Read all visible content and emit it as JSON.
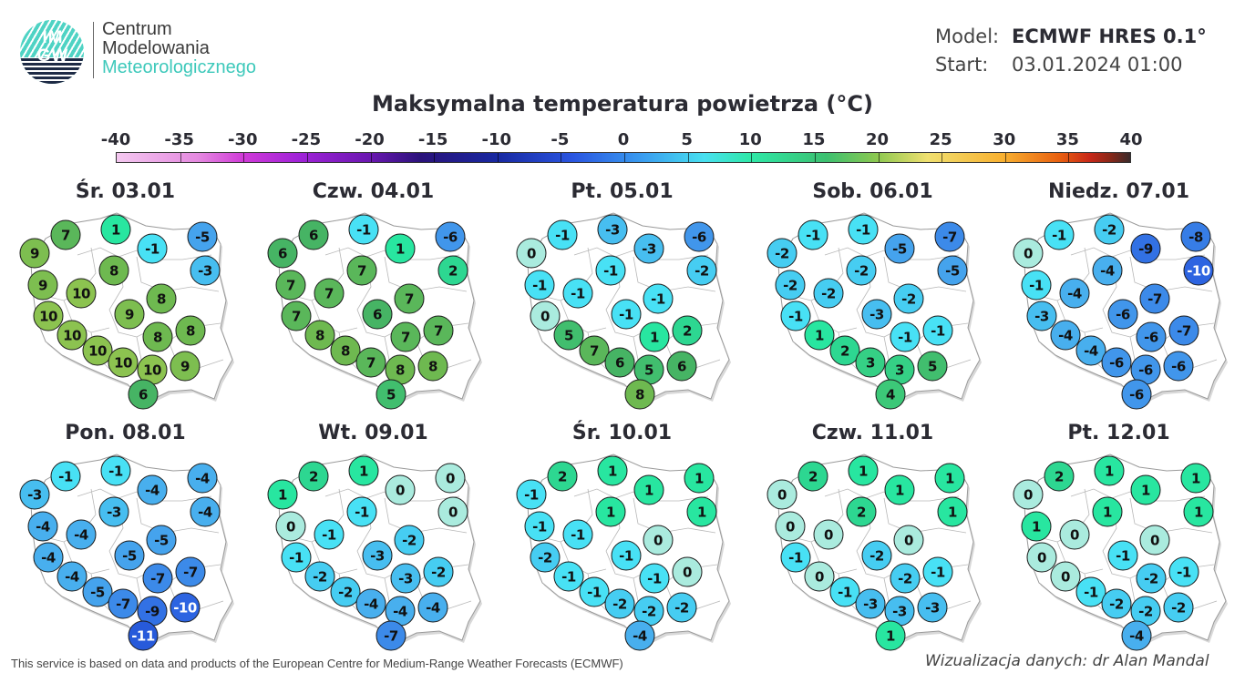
{
  "header": {
    "logo": {
      "icon": "imgw-logo-icon",
      "letters_top": "IM",
      "letters_bottom": "GW",
      "line1": "Centrum",
      "line2": "Modelowania",
      "line3": "Meteorologicznego"
    },
    "model_label": "Model:",
    "model_value": "ECMWF HRES 0.1°",
    "start_label": "Start:",
    "start_value": "03.01.2024 01:00"
  },
  "title": "Maksymalna temperatura powietrza (°C)",
  "colors": {
    "text": "#2b2b33",
    "logo_teal": "#3ec9bb",
    "logo_navy": "#1e2a45"
  },
  "footer": {
    "attribution": "This service is based on data and products of the European Centre for Medium-Range Weather Forecasts (ECMWF)",
    "credit": "Wizualizacja danych: dr Alan Mandal"
  },
  "chart_data": {
    "type": "heatmap",
    "title": "Maksymalna temperatura powietrza (°C)",
    "colorbar": {
      "ticks": [
        -40,
        -35,
        -30,
        -25,
        -20,
        -15,
        -10,
        -5,
        0,
        5,
        10,
        15,
        20,
        25,
        30,
        35,
        40
      ],
      "range": [
        -40,
        40
      ],
      "unit": "°C"
    },
    "station_positions": [
      [
        117,
        62
      ],
      [
        62,
        68
      ],
      [
        28,
        88
      ],
      [
        157,
        83
      ],
      [
        212,
        70
      ],
      [
        115,
        107
      ],
      [
        215,
        107
      ],
      [
        37,
        123
      ],
      [
        79,
        132
      ],
      [
        167,
        138
      ],
      [
        43,
        157
      ],
      [
        132,
        155
      ],
      [
        163,
        180
      ],
      [
        199,
        173
      ],
      [
        69,
        178
      ],
      [
        97,
        195
      ],
      [
        125,
        208
      ],
      [
        157,
        216
      ],
      [
        193,
        212
      ],
      [
        147,
        243
      ]
    ],
    "panels": [
      {
        "label": "Śr. 03.01",
        "values": [
          1,
          7,
          9,
          -1,
          -5,
          8,
          -3,
          9,
          10,
          8,
          10,
          9,
          8,
          8,
          10,
          10,
          10,
          10,
          9,
          6
        ]
      },
      {
        "label": "Czw. 04.01",
        "values": [
          -1,
          6,
          6,
          1,
          -6,
          7,
          2,
          7,
          7,
          7,
          7,
          6,
          7,
          7,
          8,
          8,
          7,
          8,
          8,
          5
        ]
      },
      {
        "label": "Pt. 05.01",
        "values": [
          -3,
          -1,
          0,
          -3,
          -6,
          -1,
          -2,
          -1,
          -1,
          -1,
          0,
          -1,
          1,
          2,
          5,
          7,
          6,
          5,
          6,
          8
        ]
      },
      {
        "label": "Sob. 06.01",
        "values": [
          -1,
          -1,
          -2,
          -5,
          -7,
          -2,
          -5,
          -2,
          -2,
          -2,
          -1,
          -3,
          -1,
          -1,
          1,
          2,
          3,
          3,
          5,
          4
        ]
      },
      {
        "label": "Niedz. 07.01",
        "values": [
          -2,
          -1,
          0,
          -9,
          -8,
          -4,
          -10,
          -1,
          -4,
          -7,
          -3,
          -6,
          -6,
          -7,
          -4,
          -4,
          -6,
          -6,
          -6,
          -6
        ]
      },
      {
        "label": "Pon. 08.01",
        "values": [
          -1,
          -1,
          -3,
          -4,
          -4,
          -3,
          -4,
          -4,
          -4,
          -5,
          -4,
          -5,
          -7,
          -7,
          -4,
          -5,
          -7,
          -9,
          -10,
          -11
        ]
      },
      {
        "label": "Wt. 09.01",
        "values": [
          1,
          2,
          1,
          0,
          0,
          -1,
          0,
          0,
          -1,
          -2,
          -1,
          -3,
          -3,
          -2,
          -2,
          -2,
          -4,
          -4,
          -4,
          -7
        ]
      },
      {
        "label": "Śr. 10.01",
        "values": [
          1,
          2,
          -1,
          1,
          1,
          1,
          1,
          -1,
          -1,
          0,
          -2,
          -1,
          -1,
          0,
          -1,
          -1,
          -2,
          -2,
          -2,
          -4
        ]
      },
      {
        "label": "Czw. 11.01",
        "values": [
          1,
          2,
          0,
          1,
          1,
          2,
          1,
          0,
          0,
          0,
          -1,
          -2,
          -2,
          -1,
          0,
          -1,
          -3,
          -3,
          -3,
          1
        ]
      },
      {
        "label": "Pt. 12.01",
        "values": [
          1,
          2,
          0,
          1,
          1,
          1,
          1,
          1,
          0,
          0,
          0,
          -1,
          -2,
          -1,
          0,
          -1,
          -2,
          -2,
          -2,
          -4
        ]
      }
    ]
  }
}
